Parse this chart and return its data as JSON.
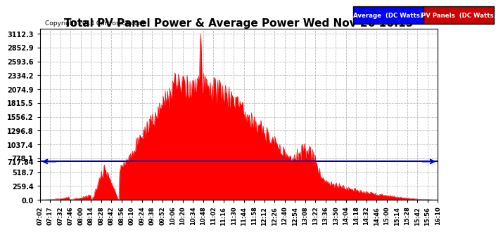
{
  "title": "Total PV Panel Power & Average Power Wed Nov 26 16:15",
  "copyright": "Copyright 2014 Cartronics.com",
  "avg_label": "Average  (DC Watts)",
  "pv_label": "PV Panels  (DC Watts)",
  "average_value": 717.84,
  "yticks": [
    0.0,
    259.4,
    518.7,
    778.1,
    1037.4,
    1296.8,
    1556.2,
    1815.5,
    2074.9,
    2334.2,
    2593.6,
    2852.9,
    3112.3
  ],
  "ymax": 3200,
  "background_color": "#ffffff",
  "grid_color": "#aaaaaa",
  "fill_color": "#ff0000",
  "avg_line_color": "#0000cc",
  "title_color": "#000000",
  "copyright_color": "#000000",
  "avg_box_color": "#0000ff",
  "pv_box_color": "#cc0000",
  "time_labels": [
    "07:02",
    "07:17",
    "07:32",
    "07:46",
    "08:00",
    "08:14",
    "08:28",
    "08:42",
    "08:56",
    "09:10",
    "09:24",
    "09:38",
    "09:52",
    "10:06",
    "10:20",
    "10:34",
    "10:48",
    "11:02",
    "11:16",
    "11:30",
    "11:44",
    "11:58",
    "12:12",
    "12:26",
    "12:40",
    "12:54",
    "13:08",
    "13:22",
    "13:36",
    "13:50",
    "14:04",
    "14:18",
    "14:32",
    "14:46",
    "15:00",
    "15:14",
    "15:28",
    "15:42",
    "15:56",
    "16:10"
  ]
}
